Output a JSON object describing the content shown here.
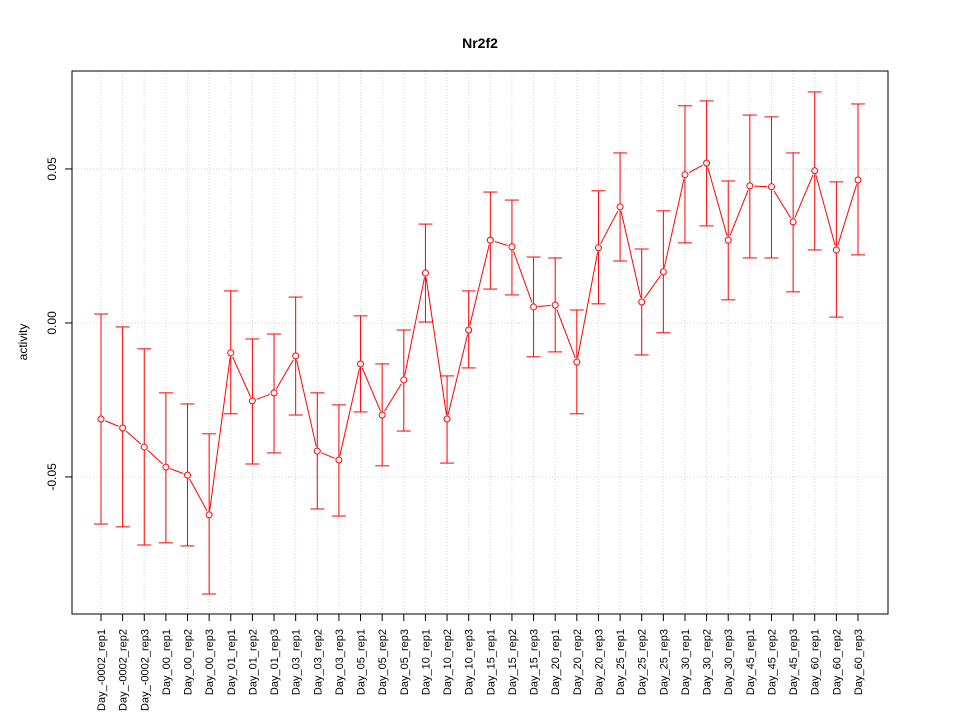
{
  "chart_data": {
    "type": "line",
    "title": "Nr2f2",
    "xlabel": "",
    "ylabel": "activity",
    "ylim": [
      -0.0945,
      0.0818
    ],
    "yticks": [
      -0.05,
      0.0,
      0.05
    ],
    "ytick_labels": [
      "-0.05",
      "0.00",
      "0.05"
    ],
    "grid": true,
    "color": "#ff0000",
    "categories": [
      "Day_-0002_rep1",
      "Day_-0002_rep2",
      "Day_-0002_rep3",
      "Day_00_rep1",
      "Day_00_rep2",
      "Day_00_rep3",
      "Day_01_rep1",
      "Day_01_rep2",
      "Day_01_rep3",
      "Day_03_rep1",
      "Day_03_rep2",
      "Day_03_rep3",
      "Day_05_rep1",
      "Day_05_rep2",
      "Day_05_rep3",
      "Day_10_rep1",
      "Day_10_rep2",
      "Day_10_rep3",
      "Day_15_rep1",
      "Day_15_rep2",
      "Day_15_rep3",
      "Day_20_rep1",
      "Day_20_rep2",
      "Day_20_rep3",
      "Day_25_rep1",
      "Day_25_rep2",
      "Day_25_rep3",
      "Day_30_rep1",
      "Day_30_rep2",
      "Day_30_rep3",
      "Day_45_rep1",
      "Day_45_rep2",
      "Day_45_rep3",
      "Day_60_rep1",
      "Day_60_rep2",
      "Day_60_rep3"
    ],
    "values": [
      -0.0312,
      -0.0341,
      -0.0403,
      -0.0468,
      -0.0494,
      -0.0623,
      -0.0097,
      -0.0253,
      -0.0227,
      -0.0107,
      -0.0416,
      -0.0445,
      -0.0133,
      -0.0299,
      -0.0185,
      0.0162,
      -0.0312,
      -0.0023,
      0.0269,
      0.0247,
      0.0052,
      0.0058,
      -0.0127,
      0.0244,
      0.0377,
      0.0068,
      0.0166,
      0.0481,
      0.0519,
      0.0269,
      0.0445,
      0.0442,
      0.0328,
      0.0494,
      0.0237,
      0.0464
    ],
    "upper": [
      0.0029,
      -0.0013,
      -0.0084,
      -0.0227,
      -0.0263,
      -0.036,
      0.0104,
      -0.0052,
      -0.0036,
      0.0084,
      -0.0227,
      -0.0266,
      0.0023,
      -0.0133,
      -0.0023,
      0.0321,
      -0.0172,
      0.0104,
      0.0425,
      0.0399,
      0.0214,
      0.0211,
      0.0042,
      0.0429,
      0.0552,
      0.024,
      0.0364,
      0.0705,
      0.0721,
      0.0461,
      0.0675,
      0.0669,
      0.0552,
      0.075,
      0.0458,
      0.0711
    ],
    "lower": [
      -0.0653,
      -0.0662,
      -0.0721,
      -0.0714,
      -0.0724,
      -0.088,
      -0.0295,
      -0.0458,
      -0.0422,
      -0.0299,
      -0.0604,
      -0.0627,
      -0.0289,
      -0.0464,
      -0.0351,
      0.0003,
      -0.0455,
      -0.0146,
      0.011,
      0.0091,
      -0.011,
      -0.0094,
      -0.0295,
      0.0062,
      0.0201,
      -0.0104,
      -0.0032,
      0.026,
      0.0315,
      0.0075,
      0.0211,
      0.0211,
      0.0101,
      0.0237,
      0.0019,
      0.0221
    ]
  }
}
